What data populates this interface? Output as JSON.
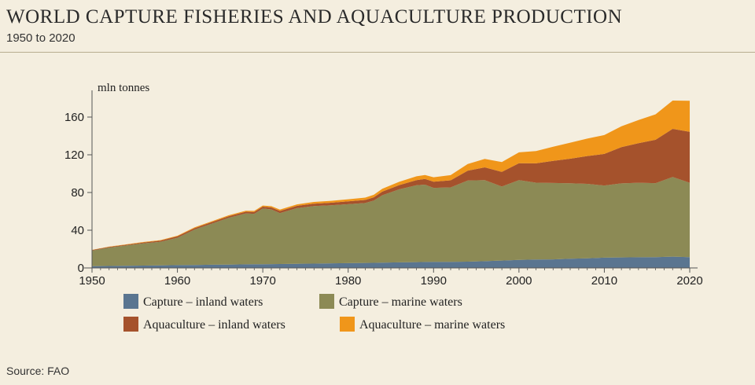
{
  "header": {
    "title": "WORLD CAPTURE FISHERIES AND AQUACULTURE PRODUCTION",
    "subtitle": "1950 to 2020"
  },
  "footer": {
    "source": "Source: FAO"
  },
  "colors": {
    "capture_inland": "#5a7590",
    "capture_marine": "#8c8a55",
    "aquaculture_inland": "#a5522c",
    "aquaculture_marine": "#f0961a",
    "background": "#f4eedf"
  },
  "chart_data": {
    "type": "area",
    "stacked": true,
    "title": "WORLD CAPTURE FISHERIES AND AQUACULTURE PRODUCTION",
    "subtitle": "1950 to 2020",
    "ylabel": "mln tonnes",
    "xlabel": "",
    "xlim": [
      1950,
      2020
    ],
    "ylim": [
      0,
      180
    ],
    "x_ticks": [
      1950,
      1960,
      1970,
      1980,
      1990,
      2000,
      2010,
      2020
    ],
    "y_ticks": [
      0,
      40,
      80,
      120,
      160
    ],
    "grid": false,
    "legend": "bottom",
    "x": [
      1950,
      1952,
      1954,
      1956,
      1958,
      1960,
      1962,
      1964,
      1966,
      1968,
      1969,
      1970,
      1971,
      1972,
      1974,
      1976,
      1978,
      1980,
      1982,
      1983,
      1984,
      1986,
      1988,
      1989,
      1990,
      1992,
      1994,
      1996,
      1998,
      2000,
      2002,
      2004,
      2006,
      2008,
      2010,
      2012,
      2014,
      2016,
      2018,
      2020
    ],
    "series": [
      {
        "name": "Capture – inland waters",
        "color": "#5a7590",
        "values": [
          1.9,
          2.1,
          2.3,
          2.5,
          2.7,
          3.0,
          3.2,
          3.4,
          3.6,
          3.8,
          3.9,
          4.0,
          4.1,
          4.2,
          4.4,
          4.6,
          4.9,
          5.1,
          5.3,
          5.4,
          5.6,
          5.9,
          6.2,
          6.3,
          6.4,
          6.4,
          6.7,
          7.2,
          7.8,
          8.6,
          8.9,
          9.1,
          9.8,
          10.2,
          10.9,
          11.2,
          11.3,
          11.4,
          12.0,
          11.5
        ]
      },
      {
        "name": "Capture – marine waters",
        "color": "#8c8a55",
        "values": [
          16.5,
          19.5,
          21.5,
          23.5,
          25.0,
          29.0,
          37.5,
          43.5,
          49.5,
          54.0,
          53.5,
          59.0,
          58.0,
          54.0,
          59.0,
          61.0,
          61.5,
          62.5,
          63.5,
          66.0,
          71.5,
          77.5,
          81.5,
          82.0,
          78.5,
          79.0,
          86.0,
          86.0,
          78.5,
          84.5,
          81.5,
          81.0,
          80.0,
          79.0,
          76.5,
          78.5,
          79.0,
          78.5,
          84.5,
          78.8
        ]
      },
      {
        "name": "Aquaculture – inland waters",
        "color": "#a5522c",
        "values": [
          0.6,
          0.7,
          0.8,
          1.0,
          1.2,
          1.5,
          1.5,
          1.6,
          1.7,
          1.8,
          1.9,
          2.0,
          2.1,
          2.2,
          2.4,
          2.6,
          2.8,
          3.0,
          3.3,
          3.5,
          3.8,
          4.5,
          5.5,
          6.0,
          6.6,
          7.5,
          10.5,
          13.5,
          15.5,
          18.0,
          20.5,
          23.5,
          26.0,
          29.5,
          33.5,
          38.5,
          42.0,
          46.0,
          51.0,
          54.0
        ]
      },
      {
        "name": "Aquaculture – marine waters",
        "color": "#f0961a",
        "values": [
          0.2,
          0.3,
          0.4,
          0.5,
          0.6,
          0.7,
          0.8,
          0.9,
          1.0,
          1.1,
          1.2,
          1.2,
          1.3,
          1.4,
          1.6,
          1.8,
          2.0,
          2.2,
          2.5,
          2.7,
          3.0,
          3.5,
          4.0,
          4.3,
          4.7,
          5.5,
          7.0,
          9.0,
          10.5,
          11.5,
          13.0,
          15.0,
          17.0,
          18.5,
          20.0,
          22.0,
          24.5,
          27.0,
          30.0,
          33.0
        ]
      }
    ]
  }
}
